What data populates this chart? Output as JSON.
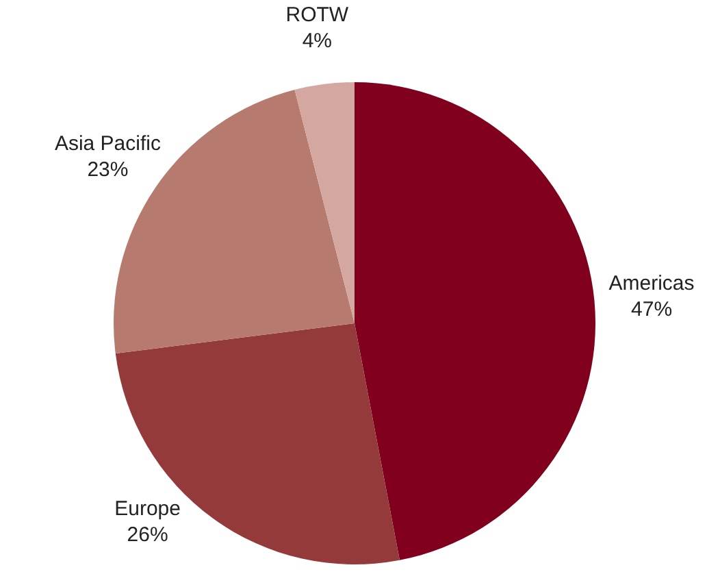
{
  "chart_data": {
    "type": "pie",
    "categories": [
      "Americas",
      "Europe",
      "Asia Pacific",
      "ROTW"
    ],
    "values": [
      47,
      26,
      23,
      4
    ],
    "value_labels": [
      "47%",
      "26%",
      "23%",
      "4%"
    ],
    "colors": [
      "#80001e",
      "#943a3a",
      "#b77a6e",
      "#d4a8a0"
    ]
  }
}
